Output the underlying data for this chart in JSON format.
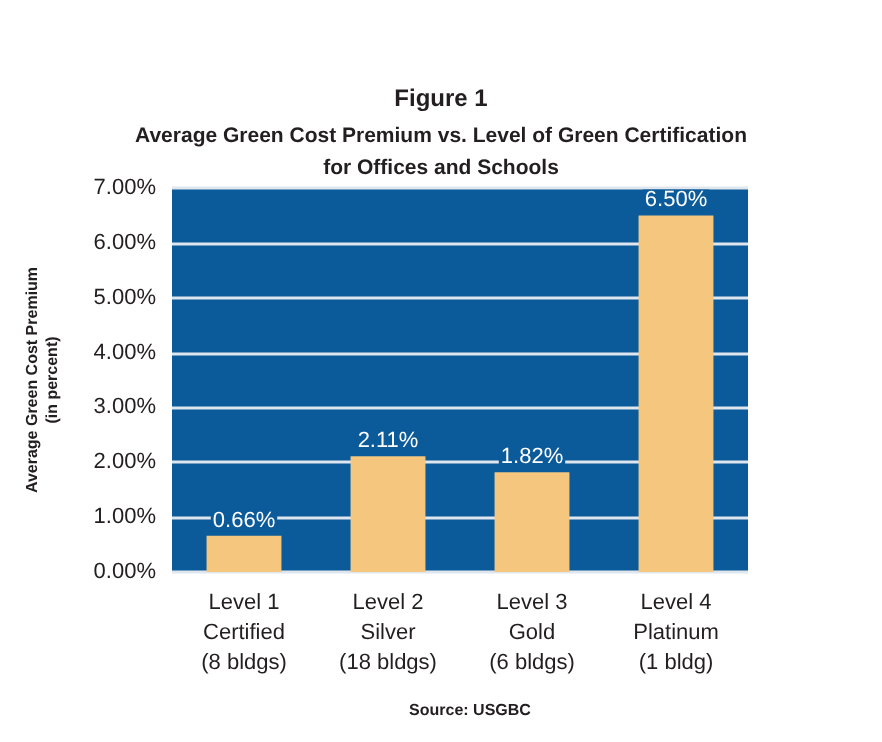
{
  "chart_data": {
    "type": "bar",
    "title": "Figure 1",
    "subtitle": "Average Green Cost Premium vs. Level of Green Certification\nfor Offices and Schools",
    "ylabel": "Average Green Cost Premium\n(in percent)",
    "categories": [
      "Level 1\nCertified\n(8 bldgs)",
      "Level 2\nSilver\n(18 bldgs)",
      "Level 3\nGold\n(6 bldgs)",
      "Level 4\nPlatinum\n(1 bldg)"
    ],
    "values": [
      0.66,
      2.11,
      1.82,
      6.5
    ],
    "value_labels": [
      "0.66%",
      "2.11%",
      "1.82%",
      "6.50%"
    ],
    "color": "#f5c77e",
    "ylim": [
      0,
      7
    ],
    "yticks": [
      {
        "value": 0,
        "label": "0.00%"
      },
      {
        "value": 1,
        "label": "1.00%"
      },
      {
        "value": 2,
        "label": "2.00%"
      },
      {
        "value": 3,
        "label": "3.00%"
      },
      {
        "value": 4,
        "label": "4.00%"
      },
      {
        "value": 5,
        "label": "5.00%"
      },
      {
        "value": 6,
        "label": "6.00%"
      },
      {
        "value": 7,
        "label": "7.00%"
      }
    ],
    "grid": "y",
    "annotations": [
      "Source: USGBC"
    ]
  }
}
